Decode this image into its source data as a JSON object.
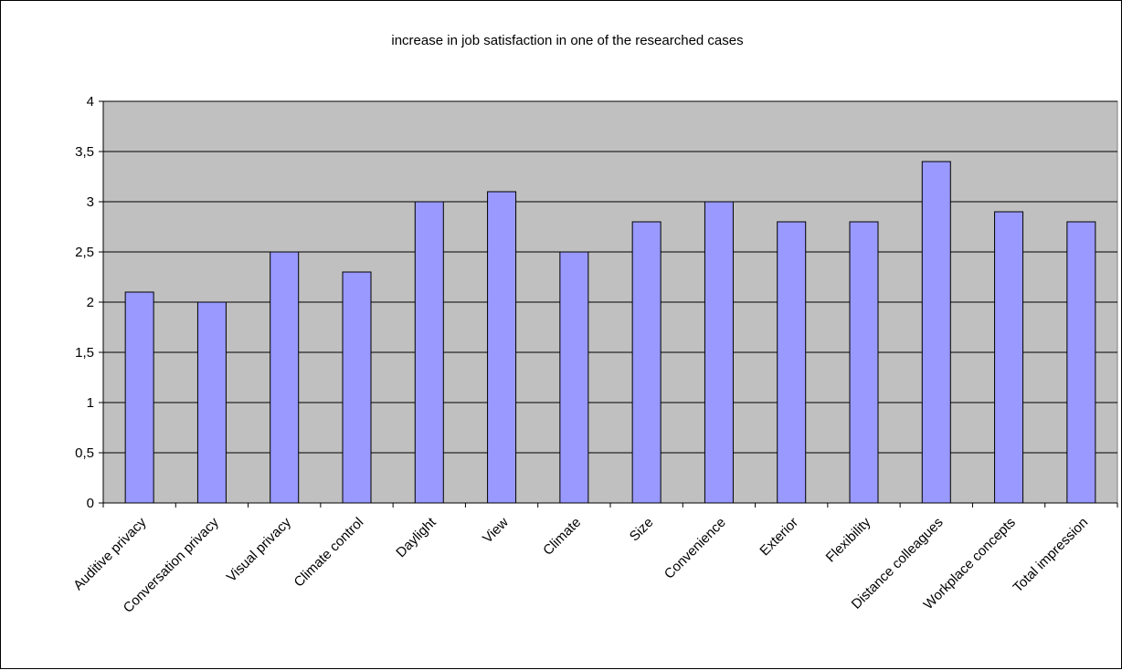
{
  "chart_data": {
    "type": "bar",
    "title": "increase in job satisfaction in one of the researched cases",
    "xlabel": "",
    "ylabel": "",
    "categories": [
      "Auditive privacy",
      "Conversation privacy",
      "Visual privacy",
      "Climate control",
      "Daylight",
      "View",
      "Climate",
      "Size",
      "Convenience",
      "Exterior",
      "Flexibility",
      "Distance colleagues",
      "Workplace concepts",
      "Total impression"
    ],
    "values": [
      2.1,
      2.0,
      2.5,
      2.3,
      3.0,
      3.1,
      2.5,
      2.8,
      3.0,
      2.8,
      2.8,
      3.4,
      2.9,
      2.8
    ],
    "ylim": [
      0,
      4
    ],
    "yticks": [
      0,
      0.5,
      1,
      1.5,
      2,
      2.5,
      3,
      3.5,
      4
    ],
    "ytick_labels": [
      "0",
      "0,5",
      "1",
      "1,5",
      "2",
      "2,5",
      "3",
      "3,5",
      "4"
    ],
    "grid": true,
    "legend": "none",
    "colors": {
      "bar_fill": "#9999ff",
      "bar_stroke": "#000000",
      "plot_background": "#c0c0c0",
      "gridline": "#000000"
    }
  }
}
